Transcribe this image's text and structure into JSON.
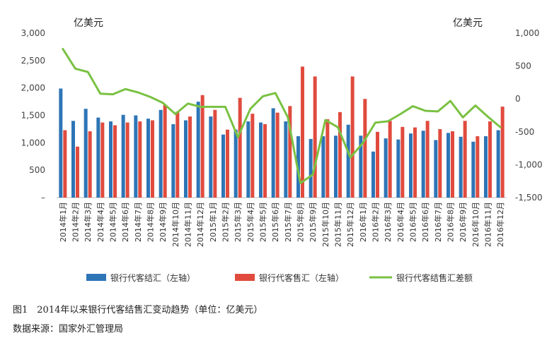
{
  "chart_data": {
    "type": "bar+line",
    "left_axis_unit": "亿美元",
    "right_axis_unit": "亿美元",
    "left_ylim": [
      0,
      3000
    ],
    "left_ticks": [
      "–",
      "500",
      "1,000",
      "1,500",
      "2,000",
      "2,500",
      "3,000"
    ],
    "right_ylim": [
      -1500,
      1000
    ],
    "right_ticks": [
      "-1,500",
      "-1,000",
      "-500",
      "0",
      "500",
      "1,000"
    ],
    "categories": [
      "2014年1月",
      "2014年2月",
      "2014年3月",
      "2014年4月",
      "2014年5月",
      "2014年6月",
      "2014年7月",
      "2014年8月",
      "2014年9月",
      "2014年10月",
      "2014年11月",
      "2014年12月",
      "2015年1月",
      "2015年2月",
      "2015年3月",
      "2015年4月",
      "2015年5月",
      "2015年6月",
      "2015年7月",
      "2015年8月",
      "2015年9月",
      "2015年10月",
      "2015年11月",
      "2015年12月",
      "2016年1月",
      "2016年2月",
      "2016年3月",
      "2016年4月",
      "2016年5月",
      "2016年6月",
      "2016年7月",
      "2016年8月",
      "2016年9月",
      "2016年10月",
      "2016年11月",
      "2016年12月"
    ],
    "series": [
      {
        "name": "银行代客结汇（左轴）",
        "kind": "bar",
        "axis": "left",
        "color": "#2e75b6",
        "values": [
          1990,
          1400,
          1620,
          1460,
          1390,
          1510,
          1500,
          1440,
          1600,
          1340,
          1410,
          1750,
          1480,
          1150,
          1240,
          1390,
          1370,
          1630,
          1390,
          1120,
          1070,
          1120,
          1130,
          1330,
          1130,
          840,
          1080,
          1060,
          1170,
          1220,
          1050,
          1180,
          1110,
          1020,
          1120,
          1230
        ]
      },
      {
        "name": "银行代客售汇（左轴）",
        "kind": "bar",
        "axis": "left",
        "color": "#e04b3e",
        "values": [
          1230,
          930,
          1210,
          1370,
          1320,
          1370,
          1390,
          1410,
          1690,
          1570,
          1480,
          1870,
          1600,
          1240,
          1820,
          1530,
          1340,
          1550,
          1670,
          2390,
          2210,
          1430,
          1560,
          2210,
          1800,
          1200,
          1400,
          1290,
          1280,
          1400,
          1250,
          1210,
          1400,
          1120,
          1390,
          1660
        ]
      },
      {
        "name": "银行代客结售汇差额",
        "kind": "line",
        "axis": "right",
        "color": "#7ac143",
        "values": [
          760,
          460,
          410,
          80,
          70,
          150,
          100,
          30,
          -60,
          -230,
          -70,
          -120,
          -120,
          -120,
          -580,
          -150,
          40,
          90,
          -280,
          -1280,
          -1150,
          -320,
          -430,
          -890,
          -670,
          -360,
          -340,
          -230,
          -110,
          -180,
          -190,
          -30,
          -280,
          -100,
          -270,
          -430
        ]
      }
    ],
    "legend_position": "bottom"
  },
  "captions": {
    "figure": "图1　2014年以来银行代客结售汇变动趋势（单位：亿美元）",
    "source": "数据来源：国家外汇管理局"
  }
}
